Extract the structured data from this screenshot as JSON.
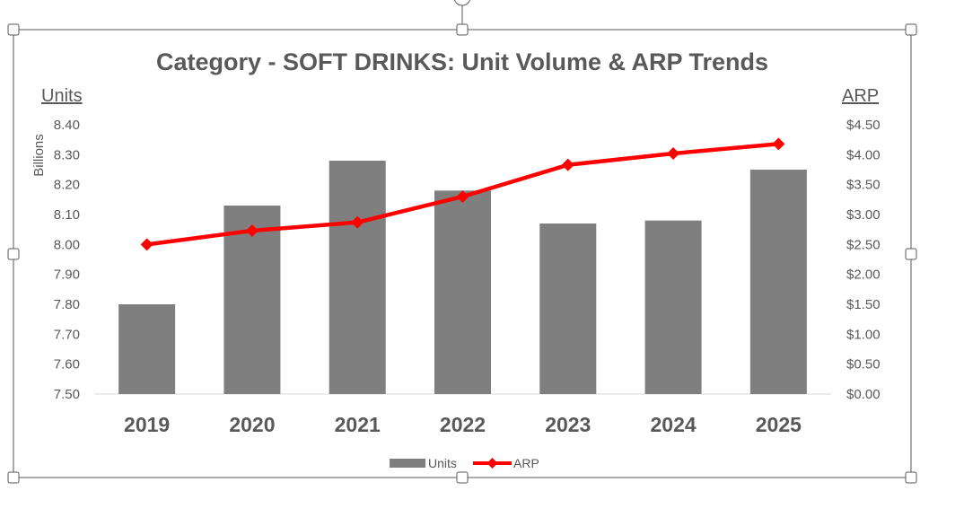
{
  "colors": {
    "bar": "#7f7f7f",
    "line": "#ff0000",
    "text": "#595959",
    "axis": "#d9d9d9",
    "frame": "#595959"
  },
  "chart_data": {
    "type": "bar",
    "title": "Category - SOFT DRINKS:  Unit Volume & ARP Trends",
    "categories": [
      "2019",
      "2020",
      "2021",
      "2022",
      "2023",
      "2024",
      "2025"
    ],
    "series": [
      {
        "name": "Units",
        "type": "bar",
        "axis": "left",
        "values": [
          7.8,
          8.13,
          8.28,
          8.18,
          8.07,
          8.08,
          8.25
        ]
      },
      {
        "name": "ARP",
        "type": "line",
        "axis": "right",
        "values": [
          2.5,
          2.73,
          2.87,
          3.3,
          3.83,
          4.02,
          4.18
        ]
      }
    ],
    "left_axis": {
      "label": "Units",
      "units_label": "Billions",
      "ylim": [
        7.5,
        8.4
      ],
      "ticks": [
        "8.40",
        "8.30",
        "8.20",
        "8.10",
        "8.00",
        "7.90",
        "7.80",
        "7.70",
        "7.60",
        "7.50"
      ]
    },
    "right_axis": {
      "label": "ARP",
      "ylim": [
        0,
        4.5
      ],
      "ticks": [
        "$4.50",
        "$4.00",
        "$3.50",
        "$3.00",
        "$2.50",
        "$2.00",
        "$1.50",
        "$1.00",
        "$0.50",
        "$0.00"
      ]
    },
    "legend": {
      "position": "bottom",
      "entries": [
        "Units",
        "ARP"
      ]
    }
  }
}
